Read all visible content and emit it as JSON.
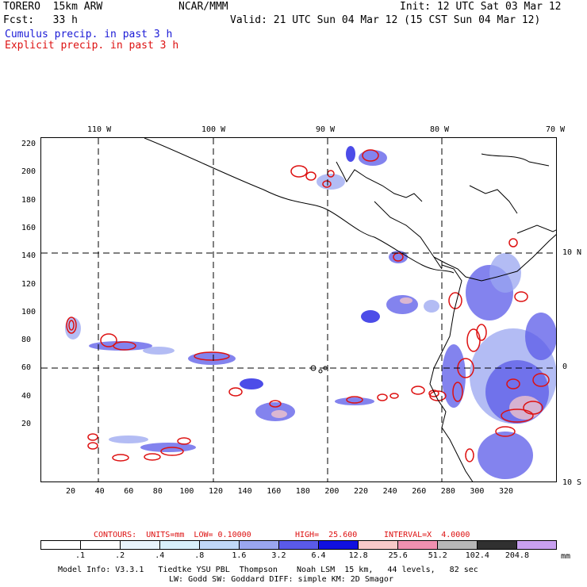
{
  "header": {
    "model": "TORERO  15km ARW",
    "center": "NCAR/MMM",
    "init": "Init: 12 UTC Sat 03 Mar 12",
    "fcst": "Fcst:   33 h",
    "valid": "Valid: 21 UTC Sun 04 Mar 12 (15 CST Sun 04 Mar 12)",
    "cumulus": "Cumulus precip. in past 3 h",
    "explicit": "Explicit precip. in past 3 h"
  },
  "map": {
    "top_lon_labels": [
      "110 W",
      "100 W",
      "90 W",
      "80 W",
      "70 W"
    ],
    "right_lat_labels": [
      "10 N",
      "0",
      "10 S"
    ],
    "y_ticks": [
      "220",
      "200",
      "180",
      "160",
      "140",
      "120",
      "100",
      "80",
      "60",
      "40",
      "20"
    ],
    "x_ticks": [
      "20",
      "40",
      "60",
      "80",
      "100",
      "120",
      "140",
      "160",
      "180",
      "200",
      "220",
      "240",
      "260",
      "280",
      "300",
      "320"
    ]
  },
  "contours_line": {
    "label": "CONTOURS:  UNITS=mm  LOW= 0.10000",
    "high": "HIGH=  25.600",
    "interval": "INTERVAL=X  4.0000"
  },
  "legend": {
    "labels": [
      ".1",
      ".2",
      ".4",
      ".8",
      "1.6",
      "3.2",
      "6.4",
      "12.8",
      "25.6",
      "51.2",
      "102.4",
      "204.8"
    ],
    "units": "mm",
    "colors": [
      "#ffffff",
      "#ffffff",
      "#e8f4fc",
      "#d8f0fa",
      "#c0d8f8",
      "#9aa6f0",
      "#5a5ae8",
      "#1010e0",
      "#f8c8c8",
      "#f090b0",
      "#b8b8b8",
      "#303030",
      "#c8a0f0"
    ]
  },
  "footer": {
    "line1": "Model Info: V3.3.1   Tiedtke YSU PBL  Thompson    Noah LSM  15 km,   44 levels,   82 sec",
    "line2": "LW: Godd SW: Goddard DIFF: simple KM: 2D Smagor"
  },
  "colors": {
    "cumulus": "#1a1ad6",
    "explicit": "#dd1111"
  }
}
